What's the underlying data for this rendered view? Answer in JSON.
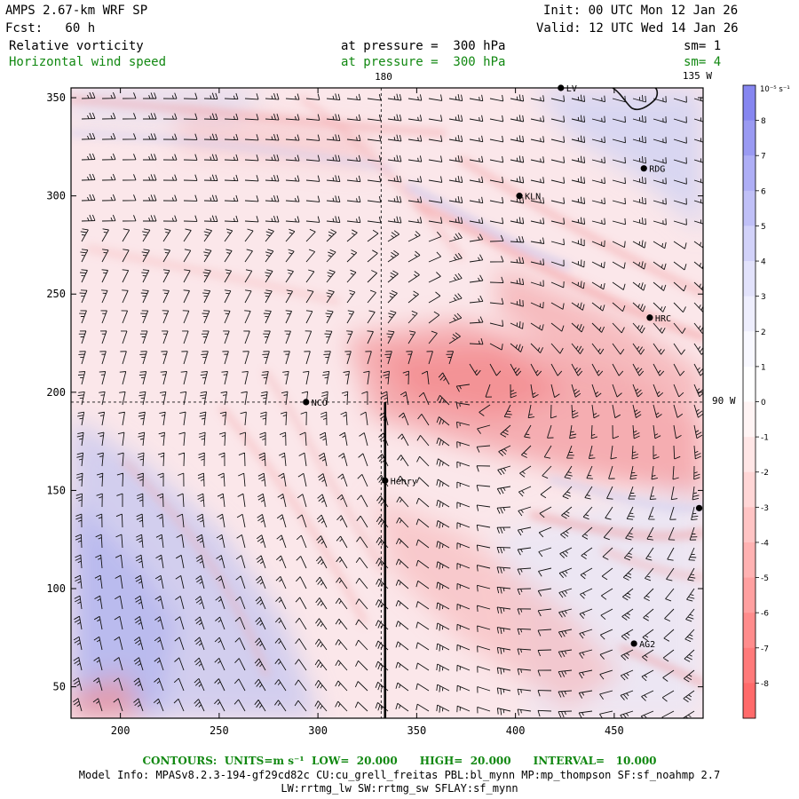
{
  "header": {
    "model": "AMPS 2.67-km WRF SP",
    "fcst": "Fcst:   60 h",
    "init": "Init: 00 UTC Mon 12 Jan 26",
    "valid": "Valid: 12 UTC Wed 14 Jan 26",
    "field1_name": "Relative vorticity",
    "field1_level": "at pressure =  300 hPa",
    "field1_sm": "sm= 1",
    "field2_name": "Horizontal wind speed",
    "field2_level": "at pressure =  300 hPa",
    "field2_sm": "sm= 4"
  },
  "map": {
    "x_ticks": [
      200,
      250,
      300,
      350,
      400,
      450
    ],
    "y_ticks": [
      50,
      100,
      150,
      200,
      250,
      300,
      350
    ],
    "x_range": [
      175,
      495
    ],
    "y_range": [
      34,
      355
    ],
    "meridian_label_top": "180",
    "meridian_label_corner": "135 W",
    "parallel_label_right": "90 W",
    "meridian_x": 332,
    "parallel_y": 195,
    "cross_section": {
      "x": 334,
      "y_from": 34,
      "y_to": 195
    },
    "stations": [
      {
        "name": "LV",
        "x": 423,
        "y": 355
      },
      {
        "name": "RDG",
        "x": 465,
        "y": 314
      },
      {
        "name": "KLN",
        "x": 402,
        "y": 300
      },
      {
        "name": "HRC",
        "x": 468,
        "y": 238
      },
      {
        "name": "NCO",
        "x": 294,
        "y": 195
      },
      {
        "name": "Henry",
        "x": 334,
        "y": 155
      },
      {
        "name": "AG2",
        "x": 460,
        "y": 72
      },
      {
        "name": "",
        "x": 493,
        "y": 141
      }
    ]
  },
  "colorbar": {
    "unit": "10⁻⁵ s⁻¹",
    "labels": [
      "8",
      "7",
      "6",
      "5",
      "4",
      "3",
      "2",
      "1",
      "0",
      "-1",
      "-2",
      "-3",
      "-4",
      "-5",
      "-6",
      "-7",
      "-8"
    ],
    "colors": [
      "#8686f0",
      "#9a9af2",
      "#aeaef5",
      "#c0c0f7",
      "#d2d2f9",
      "#e2e2fb",
      "#eeeefd",
      "#f8f8ff",
      "#ffffff",
      "#fff4f4",
      "#ffe6e6",
      "#ffd6d6",
      "#ffc4c4",
      "#ffb2b2",
      "#ffa0a0",
      "#ff8c8c",
      "#ff7a7a",
      "#ff6a6a"
    ]
  },
  "footer": {
    "contours": "CONTOURS:  UNITS=m s⁻¹  LOW=  20.000      HIGH=  20.000      INTERVAL=   10.000",
    "model_info": "Model Info: MPASv8.2.3-194-gf29cd82c CU:cu_grell_freitas PBL:bl_mynn MP:mp_thompson SF:sf_noahmp 2.7",
    "model_info2": "LW:rrtmg_lw SW:rrtmg_sw SFLAY:sf_mynn"
  }
}
